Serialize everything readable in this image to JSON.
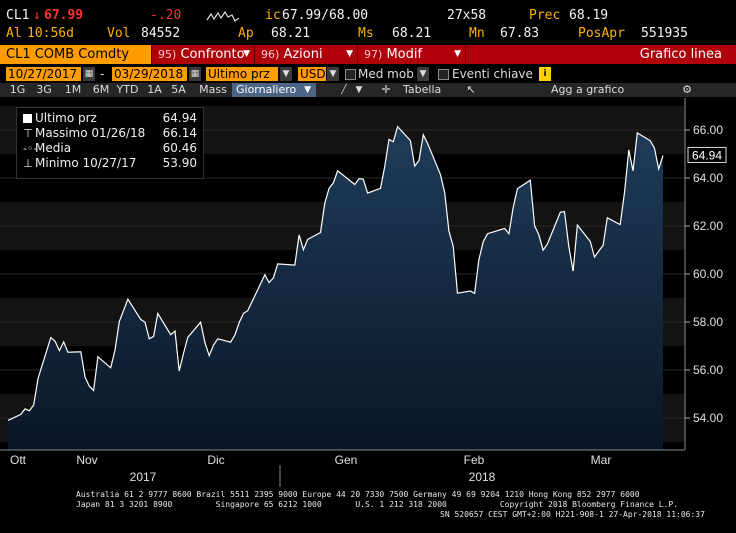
{
  "quote": {
    "ticker": "CL1",
    "arrow": "↓",
    "last": "67.99",
    "change": "-.20",
    "range_label": "ic",
    "range": "67.99/68.00",
    "size": "27x58",
    "prev_label": "Prec",
    "prev": "68.19",
    "at_label": "Al",
    "time": "10:56d",
    "vol_label": "Vol",
    "vol": "84552",
    "open_label": "Ap",
    "open": "68.21",
    "high_label": "Ms",
    "high": "68.21",
    "low_label": "Mn",
    "low": "67.83",
    "oi_label": "PosApr",
    "oi": "551935"
  },
  "toolbar": {
    "security": "CL1 COMB Comdty",
    "compare_num": "95)",
    "compare": "Confronto",
    "actions_num": "96)",
    "actions": "Azioni",
    "edit_num": "97)",
    "edit": "Modif",
    "chart_title": "Grafico linea"
  },
  "controls": {
    "start_date": "10/27/2017",
    "end_date": "03/29/2018",
    "field": "Ultimo prz",
    "currency": "USD",
    "moving_avg": "Med mob",
    "events": "Eventi chiave",
    "info": "i"
  },
  "periods": [
    "1G",
    "3G",
    "1M",
    "6M",
    "YTD",
    "1A",
    "5A",
    "Mass"
  ],
  "view": {
    "frequency": "Giornaliero",
    "table": "Tabella",
    "add_chart": "Agg a grafico",
    "settings_icon": "gear-icon"
  },
  "legend": {
    "last_label": "Ultimo prz",
    "last_value": "64.94",
    "max_label": "Massimo 01/26/18",
    "max_value": "66.14",
    "avg_label": "Media",
    "avg_value": "60.46",
    "min_label": "Minimo 10/27/17",
    "min_value": "53.90"
  },
  "chart_data": {
    "type": "area",
    "title": "",
    "xlabel": "",
    "ylabel": "",
    "ylim": [
      53,
      67.5
    ],
    "y_ticks": [
      "54.00",
      "56.00",
      "58.00",
      "60.00",
      "62.00",
      "64.00",
      "66.00"
    ],
    "x_ticks": [
      "Ott",
      "Nov",
      "Dic",
      "Gen",
      "Feb",
      "Mar"
    ],
    "x_years": [
      "2017",
      "2018"
    ],
    "last_value_label": "64.94",
    "colors": {
      "line": "#ffffff",
      "fill_top": "#1f3c5a",
      "fill_bottom": "#0a1626",
      "axis": "#cccccc",
      "bands": "#1a1a1a"
    },
    "series": [
      {
        "x": [
          "10/27/17",
          "10/30/17",
          "10/31/17",
          "11/01/17",
          "11/02/17",
          "11/03/17",
          "11/06/17",
          "11/07/17",
          "11/08/17",
          "11/09/17",
          "11/10/17",
          "11/13/17",
          "11/14/17",
          "11/15/17",
          "11/16/17",
          "11/17/17",
          "11/20/17",
          "11/21/17",
          "11/22/17",
          "11/24/17",
          "11/27/17",
          "11/28/17",
          "11/29/17",
          "11/30/17",
          "12/01/17",
          "12/04/17",
          "12/05/17",
          "12/06/17",
          "12/07/17",
          "12/08/17",
          "12/11/17",
          "12/12/17",
          "12/13/17",
          "12/14/17",
          "12/15/17",
          "12/18/17",
          "12/19/17",
          "12/20/17",
          "12/21/17",
          "12/22/17",
          "12/26/17",
          "12/27/17",
          "12/28/17",
          "12/29/17",
          "01/02/18",
          "01/03/18",
          "01/04/18",
          "01/05/18",
          "01/08/18",
          "01/09/18",
          "01/10/18",
          "01/11/18",
          "01/12/18",
          "01/16/18",
          "01/17/18",
          "01/18/18",
          "01/19/18",
          "01/22/18",
          "01/23/18",
          "01/24/18",
          "01/25/18",
          "01/26/18",
          "01/29/18",
          "01/30/18",
          "01/31/18",
          "02/01/18",
          "02/02/18",
          "02/05/18",
          "02/06/18",
          "02/07/18",
          "02/08/18",
          "02/09/18",
          "02/12/18",
          "02/13/18",
          "02/14/18",
          "02/15/18",
          "02/16/18",
          "02/20/18",
          "02/21/18",
          "02/22/18",
          "02/23/18",
          "02/26/18",
          "02/27/18",
          "02/28/18",
          "03/01/18",
          "03/02/18",
          "03/05/18",
          "03/06/18",
          "03/07/18",
          "03/08/18",
          "03/09/18",
          "03/12/18",
          "03/13/18",
          "03/14/18",
          "03/15/18",
          "03/16/18",
          "03/19/18",
          "03/20/18",
          "03/21/18",
          "03/22/18",
          "03/23/18",
          "03/26/18",
          "03/27/18",
          "03/28/18",
          "03/29/18"
        ],
        "values": [
          53.9,
          54.15,
          54.38,
          54.3,
          54.54,
          55.64,
          57.35,
          57.2,
          56.81,
          57.17,
          56.74,
          56.76,
          55.7,
          55.33,
          55.14,
          56.55,
          56.09,
          56.83,
          58.02,
          58.95,
          58.11,
          57.99,
          57.3,
          57.4,
          58.36,
          57.47,
          57.62,
          55.96,
          56.69,
          57.36,
          57.99,
          57.14,
          56.6,
          57.04,
          57.3,
          57.16,
          57.46,
          57.98,
          58.36,
          58.47,
          59.97,
          59.64,
          59.84,
          60.42,
          60.37,
          61.63,
          61.01,
          61.44,
          61.73,
          62.96,
          63.57,
          63.8,
          64.3,
          63.73,
          63.97,
          63.95,
          63.37,
          63.57,
          64.47,
          65.61,
          65.51,
          66.14,
          65.56,
          64.5,
          64.73,
          65.8,
          65.45,
          64.15,
          63.39,
          61.79,
          61.15,
          59.2,
          59.29,
          59.19,
          60.6,
          61.34,
          61.68,
          61.9,
          61.68,
          62.77,
          63.55,
          63.91,
          62.01,
          61.64,
          60.99,
          61.25,
          62.57,
          62.6,
          61.15,
          60.12,
          62.04,
          61.36,
          60.71,
          60.96,
          61.19,
          62.34,
          62.06,
          63.4,
          65.17,
          64.3,
          65.88,
          65.55,
          65.25,
          64.38,
          64.94
        ]
      }
    ]
  },
  "footer": {
    "line1": "Australia 61 2 9777 8600 Brazil 5511 2395 9000 Europe 44 20 7330 7500 Germany 49 69 9204 1210 Hong Kong 852 2977 6000",
    "line2": "Japan 81 3 3201 8900         Singapore 65 6212 1000       U.S. 1 212 318 2000           Copyright 2018 Bloomberg Finance L.P.",
    "line3": "SN 520657 CEST GMT+2:00 H221-908-1 27-Apr-2018 11:06:37"
  }
}
